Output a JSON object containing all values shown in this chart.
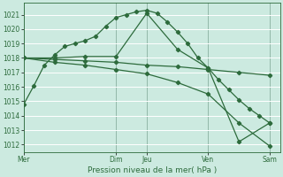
{
  "bg_color": "#cceae0",
  "grid_color": "#ffffff",
  "line_color": "#2d6b3c",
  "xlabel": "Pression niveau de la mer( hPa )",
  "ylim": [
    1011.5,
    1021.8
  ],
  "yticks": [
    1012,
    1013,
    1014,
    1015,
    1016,
    1017,
    1018,
    1019,
    1020,
    1021
  ],
  "day_labels": [
    "Mer",
    "Dim",
    "Jeu",
    "Ven",
    "Sam"
  ],
  "day_positions": [
    0,
    9,
    12,
    18,
    24
  ],
  "xlim": [
    0,
    25
  ],
  "series1": {
    "x": [
      0,
      1,
      2,
      3,
      4,
      5,
      6,
      7,
      8,
      9,
      10,
      11,
      12,
      13,
      14,
      15,
      16,
      17,
      18,
      19,
      20,
      21,
      22,
      23,
      24
    ],
    "y": [
      1014.8,
      1016.1,
      1017.5,
      1018.2,
      1018.8,
      1019.0,
      1019.2,
      1019.5,
      1020.2,
      1020.8,
      1021.0,
      1021.2,
      1021.3,
      1021.1,
      1020.5,
      1019.8,
      1019.0,
      1018.0,
      1017.3,
      1016.5,
      1015.8,
      1015.1,
      1014.5,
      1014.0,
      1013.5
    ]
  },
  "series2": {
    "x": [
      0,
      3,
      6,
      9,
      12,
      15,
      18,
      21,
      24
    ],
    "y": [
      1018.0,
      1018.0,
      1018.1,
      1018.1,
      1021.1,
      1018.6,
      1017.3,
      1012.2,
      1013.5
    ]
  },
  "series3": {
    "x": [
      0,
      3,
      6,
      9,
      12,
      15,
      18,
      21,
      24
    ],
    "y": [
      1018.0,
      1017.9,
      1017.8,
      1017.7,
      1017.5,
      1017.4,
      1017.2,
      1017.0,
      1016.8
    ]
  },
  "series4": {
    "x": [
      0,
      3,
      6,
      9,
      12,
      15,
      18,
      21,
      24
    ],
    "y": [
      1018.0,
      1017.7,
      1017.5,
      1017.2,
      1016.9,
      1016.3,
      1015.5,
      1013.5,
      1011.9
    ]
  },
  "vline_color": "#8ab0a0",
  "vline_positions": [
    0,
    9,
    12,
    18,
    24
  ]
}
